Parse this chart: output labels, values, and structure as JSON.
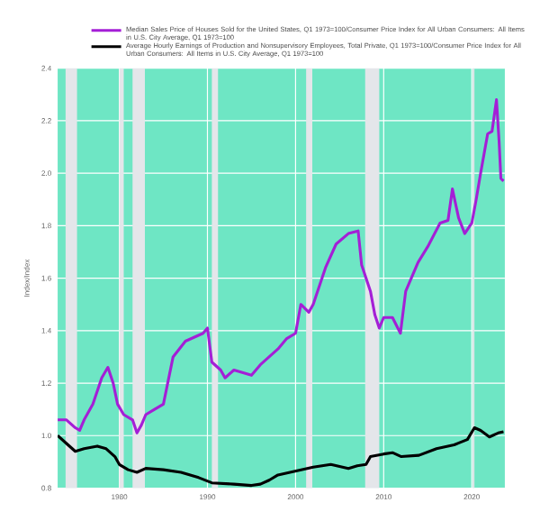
{
  "chart_data": {
    "type": "line",
    "ylabel": "Index/Index",
    "xlim": [
      1973,
      2023.75
    ],
    "xticks": [
      1980,
      1990,
      2000,
      2010,
      2020
    ],
    "ylim": [
      0.8,
      2.4
    ],
    "yticks": [
      0.8,
      {
        "value": 1,
        "label": "1.0"
      },
      1.2,
      1.4,
      1.6,
      1.8,
      {
        "value": 2,
        "label": "2.0"
      },
      2.2,
      2.4
    ],
    "grid": true,
    "legend": "top",
    "line_style": "solid",
    "marker": "none",
    "bands": [
      {
        "axis": "x",
        "from": 1973.9,
        "to": 1975.2,
        "color": "#e4e6ea"
      },
      {
        "axis": "x",
        "from": 1980.0,
        "to": 1980.5,
        "color": "#e4e6ea"
      },
      {
        "axis": "x",
        "from": 1981.5,
        "to": 1982.9,
        "color": "#e4e6ea"
      },
      {
        "axis": "x",
        "from": 1990.5,
        "to": 1991.2,
        "color": "#e4e6ea"
      },
      {
        "axis": "x",
        "from": 2001.2,
        "to": 2001.9,
        "color": "#e4e6ea"
      },
      {
        "axis": "x",
        "from": 2007.9,
        "to": 2009.5,
        "color": "#e4e6ea"
      },
      {
        "axis": "x",
        "from": 2020.1,
        "to": 2020.3,
        "color": "#e4e6ea"
      }
    ],
    "series": [
      {
        "name": "Median Sales Price of Houses Sold for the United States, Q1 1973=100/Consumer Price Index for All Urban Consumers: All Items in U.S. City Average, Q1 1973=100",
        "color": "#a41fd6",
        "x": [
          1973,
          1974,
          1975,
          1975.5,
          1976,
          1977,
          1978,
          1978.7,
          1979.3,
          1979.8,
          1980.5,
          1981.5,
          1982,
          1982.5,
          1983,
          1984,
          1985,
          1986.1,
          1987.5,
          1989.5,
          1990,
          1990.5,
          1991.5,
          1992,
          1993,
          1994,
          1995,
          1996,
          1997,
          1998,
          1999,
          2000,
          2000.6,
          2001.5,
          2002,
          2003.4,
          2004.6,
          2006,
          2007.1,
          2007.5,
          2008.5,
          2009,
          2009.5,
          2010,
          2011,
          2011.9,
          2012.5,
          2013.9,
          2015,
          2016.4,
          2017.3,
          2017.8,
          2018.5,
          2019.2,
          2020,
          2020.5,
          2021,
          2021.8,
          2022.3,
          2022.8,
          2023.1,
          2023.3,
          2023.6
        ],
        "values": [
          1.06,
          1.06,
          1.03,
          1.02,
          1.06,
          1.12,
          1.22,
          1.26,
          1.2,
          1.12,
          1.08,
          1.06,
          1.01,
          1.04,
          1.08,
          1.1,
          1.12,
          1.3,
          1.36,
          1.39,
          1.41,
          1.28,
          1.25,
          1.22,
          1.25,
          1.24,
          1.23,
          1.27,
          1.3,
          1.33,
          1.37,
          1.39,
          1.5,
          1.47,
          1.5,
          1.64,
          1.73,
          1.77,
          1.78,
          1.65,
          1.55,
          1.46,
          1.41,
          1.45,
          1.45,
          1.39,
          1.55,
          1.66,
          1.72,
          1.81,
          1.82,
          1.94,
          1.83,
          1.77,
          1.81,
          1.9,
          2.0,
          2.15,
          2.16,
          2.28,
          2.12,
          1.98,
          1.97
        ]
      },
      {
        "name": "Average Hourly Earnings of Production and Nonsupervisory Employees, Total Private, Q1 1973=100/Consumer Price Index for All Urban Consumers: All Items in U.S. City Average, Q1 1973=100",
        "color": "#000000",
        "x": [
          1973,
          1974,
          1975,
          1976,
          1977.5,
          1978.5,
          1979.5,
          1980,
          1981,
          1982,
          1983,
          1985,
          1987,
          1989,
          1990.5,
          1993,
          1995,
          1996,
          1997,
          1998,
          2000,
          2002,
          2004,
          2006,
          2007,
          2008,
          2008.5,
          2010,
          2011,
          2012,
          2014,
          2016,
          2018,
          2019.5,
          2020.3,
          2021,
          2022,
          2023,
          2023.6
        ],
        "values": [
          1.0,
          0.97,
          0.94,
          0.95,
          0.96,
          0.95,
          0.92,
          0.89,
          0.87,
          0.86,
          0.875,
          0.87,
          0.86,
          0.84,
          0.82,
          0.815,
          0.81,
          0.815,
          0.83,
          0.85,
          0.865,
          0.88,
          0.89,
          0.875,
          0.885,
          0.89,
          0.92,
          0.93,
          0.935,
          0.92,
          0.925,
          0.95,
          0.965,
          0.985,
          1.03,
          1.02,
          0.995,
          1.01,
          1.015
        ]
      }
    ]
  }
}
